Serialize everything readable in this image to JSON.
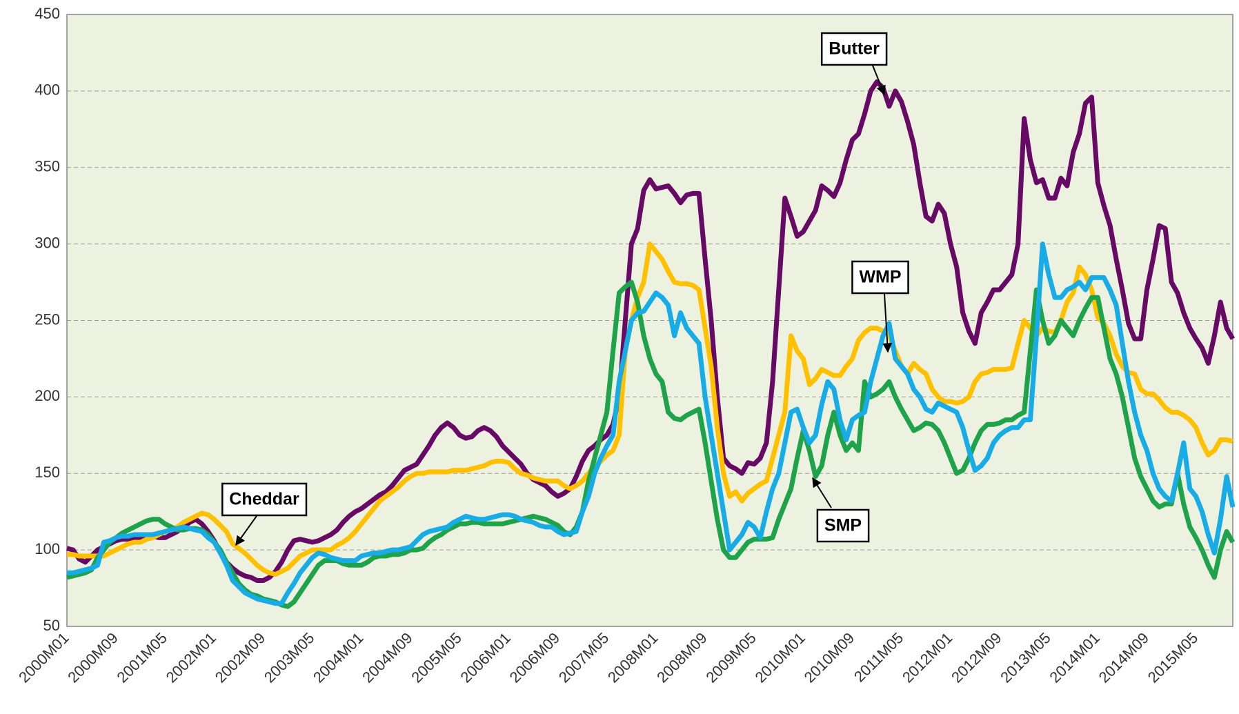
{
  "chart_data": {
    "type": "line",
    "categories": [
      "2000M01",
      null,
      null,
      null,
      null,
      null,
      null,
      null,
      "2000M09",
      null,
      null,
      null,
      null,
      null,
      null,
      null,
      "2001M05",
      null,
      null,
      null,
      null,
      null,
      null,
      null,
      "2002M01",
      null,
      null,
      null,
      null,
      null,
      null,
      null,
      "2002M09",
      null,
      null,
      null,
      null,
      null,
      null,
      null,
      "2003M05",
      null,
      null,
      null,
      null,
      null,
      null,
      null,
      "2004M01",
      null,
      null,
      null,
      null,
      null,
      null,
      null,
      "2004M09",
      null,
      null,
      null,
      null,
      null,
      null,
      null,
      "2005M05",
      null,
      null,
      null,
      null,
      null,
      null,
      null,
      "2006M01",
      null,
      null,
      null,
      null,
      null,
      null,
      null,
      "2006M09",
      null,
      null,
      null,
      null,
      null,
      null,
      null,
      "2007M05",
      null,
      null,
      null,
      null,
      null,
      null,
      null,
      "2008M01",
      null,
      null,
      null,
      null,
      null,
      null,
      null,
      "2008M09",
      null,
      null,
      null,
      null,
      null,
      null,
      null,
      "2009M05",
      null,
      null,
      null,
      null,
      null,
      null,
      null,
      "2010M01",
      null,
      null,
      null,
      null,
      null,
      null,
      null,
      "2010M09",
      null,
      null,
      null,
      null,
      null,
      null,
      null,
      "2011M05",
      null,
      null,
      null,
      null,
      null,
      null,
      null,
      "2012M01",
      null,
      null,
      null,
      null,
      null,
      null,
      null,
      "2012M09",
      null,
      null,
      null,
      null,
      null,
      null,
      null,
      "2013M05",
      null,
      null,
      null,
      null,
      null,
      null,
      null,
      "2014M01",
      null,
      null,
      null,
      null,
      null,
      null,
      null,
      "2014M09",
      null,
      null,
      null,
      null,
      null,
      null,
      null,
      "2015M05",
      null,
      null,
      null,
      null,
      null,
      null
    ],
    "series": [
      {
        "name": "Butter",
        "color": "#660a66",
        "values": [
          101,
          100,
          94,
          92,
          96,
          100,
          102,
          104,
          106,
          107,
          107,
          108,
          108,
          108,
          109,
          108,
          108,
          110,
          112,
          115,
          118,
          120,
          117,
          112,
          106,
          98,
          92,
          88,
          85,
          83,
          82,
          80,
          80,
          82,
          86,
          92,
          100,
          106,
          107,
          106,
          105,
          106,
          108,
          110,
          113,
          118,
          122,
          125,
          127,
          130,
          133,
          136,
          138,
          142,
          147,
          152,
          154,
          156,
          162,
          168,
          175,
          180,
          183,
          180,
          175,
          173,
          174,
          178,
          180,
          178,
          174,
          168,
          164,
          160,
          156,
          150,
          146,
          144,
          142,
          138,
          135,
          137,
          140,
          148,
          158,
          165,
          168,
          172,
          175,
          182,
          200,
          250,
          300,
          310,
          335,
          342,
          336,
          337,
          338,
          333,
          327,
          332,
          333,
          333,
          290,
          250,
          200,
          160,
          155,
          153,
          150,
          157,
          156,
          160,
          170,
          210,
          270,
          330,
          318,
          305,
          308,
          315,
          322,
          338,
          335,
          331,
          340,
          355,
          368,
          372,
          385,
          400,
          406,
          402,
          390,
          400,
          393,
          380,
          365,
          340,
          318,
          315,
          326,
          320,
          300,
          285,
          255,
          243,
          235,
          255,
          262,
          270,
          270,
          275,
          280,
          300,
          382,
          355,
          340,
          342,
          330,
          330,
          343,
          338,
          360,
          372,
          392,
          396,
          340,
          325,
          312,
          290,
          270,
          248,
          238,
          238,
          270,
          290,
          312,
          310,
          275,
          268,
          255,
          245,
          238,
          232,
          222,
          240,
          262,
          245,
          238
        ]
      },
      {
        "name": "Cheddar",
        "color": "#ffc000",
        "values": [
          97,
          97,
          96,
          96,
          96,
          96,
          96,
          98,
          100,
          102,
          104,
          105,
          105,
          107,
          108,
          110,
          112,
          113,
          115,
          118,
          120,
          122,
          124,
          123,
          120,
          116,
          112,
          104,
          101,
          98,
          94,
          90,
          87,
          85,
          84,
          86,
          88,
          92,
          96,
          98,
          100,
          100,
          100,
          100,
          103,
          105,
          108,
          112,
          117,
          122,
          127,
          132,
          135,
          138,
          141,
          145,
          148,
          150,
          150,
          151,
          151,
          151,
          151,
          152,
          152,
          152,
          153,
          154,
          155,
          157,
          158,
          158,
          157,
          153,
          150,
          149,
          147,
          146,
          145,
          145,
          145,
          142,
          140,
          142,
          145,
          150,
          155,
          158,
          162,
          165,
          175,
          230,
          250,
          265,
          275,
          300,
          295,
          290,
          282,
          275,
          274,
          274,
          273,
          270,
          245,
          220,
          180,
          150,
          135,
          138,
          132,
          137,
          140,
          143,
          145,
          160,
          175,
          190,
          240,
          230,
          225,
          208,
          212,
          218,
          216,
          214,
          214,
          220,
          225,
          237,
          242,
          245,
          245,
          243,
          240,
          230,
          220,
          215,
          222,
          218,
          215,
          205,
          200,
          197,
          197,
          196,
          197,
          200,
          210,
          215,
          216,
          218,
          218,
          218,
          219,
          235,
          250,
          245,
          240,
          245,
          243,
          242,
          250,
          262,
          268,
          285,
          280,
          270,
          252,
          248,
          240,
          228,
          220,
          216,
          215,
          205,
          202,
          202,
          198,
          193,
          190,
          190,
          188,
          185,
          180,
          170,
          162,
          165,
          172,
          172,
          171
        ]
      },
      {
        "name": "SMP",
        "color": "#1ea34a",
        "values": [
          82,
          83,
          84,
          85,
          87,
          95,
          100,
          105,
          108,
          111,
          113,
          115,
          117,
          119,
          120,
          120,
          117,
          115,
          113,
          113,
          114,
          114,
          113,
          110,
          105,
          100,
          92,
          85,
          78,
          74,
          71,
          70,
          68,
          67,
          66,
          64,
          63,
          66,
          72,
          78,
          84,
          90,
          93,
          93,
          93,
          91,
          90,
          90,
          90,
          92,
          95,
          96,
          96,
          97,
          97,
          98,
          100,
          100,
          101,
          105,
          108,
          110,
          113,
          115,
          117,
          117,
          118,
          118,
          117,
          117,
          117,
          117,
          118,
          119,
          120,
          121,
          122,
          121,
          120,
          118,
          116,
          112,
          110,
          115,
          125,
          145,
          160,
          175,
          190,
          230,
          268,
          272,
          275,
          262,
          240,
          225,
          215,
          210,
          190,
          186,
          185,
          188,
          190,
          192,
          170,
          145,
          120,
          100,
          95,
          95,
          100,
          105,
          107,
          107,
          107,
          108,
          120,
          130,
          140,
          160,
          178,
          165,
          148,
          155,
          175,
          190,
          175,
          165,
          170,
          165,
          210,
          200,
          202,
          205,
          210,
          200,
          192,
          185,
          178,
          180,
          183,
          182,
          178,
          170,
          160,
          150,
          152,
          160,
          170,
          178,
          182,
          182,
          183,
          185,
          185,
          188,
          190,
          230,
          270,
          250,
          235,
          240,
          250,
          245,
          240,
          250,
          258,
          265,
          265,
          245,
          225,
          215,
          200,
          180,
          160,
          148,
          140,
          132,
          128,
          130,
          130,
          150,
          130,
          115,
          108,
          100,
          90,
          82,
          100,
          112,
          105
        ]
      },
      {
        "name": "WMP",
        "color": "#17ace6",
        "values": [
          85,
          85,
          86,
          87,
          88,
          90,
          105,
          106,
          108,
          109,
          109,
          110,
          110,
          110,
          110,
          111,
          112,
          113,
          114,
          115,
          114,
          113,
          112,
          108,
          105,
          98,
          90,
          80,
          76,
          72,
          70,
          68,
          67,
          66,
          65,
          65,
          72,
          78,
          85,
          90,
          95,
          98,
          97,
          95,
          94,
          93,
          93,
          93,
          96,
          97,
          98,
          98,
          99,
          100,
          100,
          101,
          102,
          106,
          110,
          112,
          113,
          114,
          115,
          118,
          120,
          122,
          121,
          120,
          120,
          121,
          122,
          123,
          123,
          122,
          120,
          119,
          118,
          116,
          115,
          115,
          112,
          110,
          111,
          112,
          125,
          135,
          150,
          160,
          168,
          175,
          210,
          230,
          250,
          255,
          256,
          262,
          268,
          265,
          260,
          240,
          255,
          245,
          240,
          235,
          200,
          175,
          150,
          125,
          100,
          105,
          110,
          118,
          115,
          108,
          125,
          140,
          150,
          170,
          190,
          192,
          180,
          170,
          175,
          195,
          210,
          205,
          185,
          172,
          185,
          188,
          190,
          210,
          225,
          240,
          248,
          225,
          220,
          215,
          205,
          200,
          192,
          190,
          196,
          194,
          192,
          190,
          180,
          165,
          152,
          155,
          160,
          170,
          175,
          178,
          180,
          180,
          185,
          185,
          240,
          300,
          280,
          265,
          265,
          270,
          272,
          275,
          270,
          278,
          278,
          278,
          270,
          260,
          235,
          210,
          190,
          175,
          165,
          150,
          140,
          135,
          132,
          150,
          170,
          140,
          135,
          125,
          110,
          98,
          120,
          148,
          128
        ]
      }
    ],
    "ylim": [
      50,
      450
    ],
    "yticks": [
      50,
      100,
      150,
      200,
      250,
      300,
      350,
      400,
      450
    ],
    "grid": true
  }
}
